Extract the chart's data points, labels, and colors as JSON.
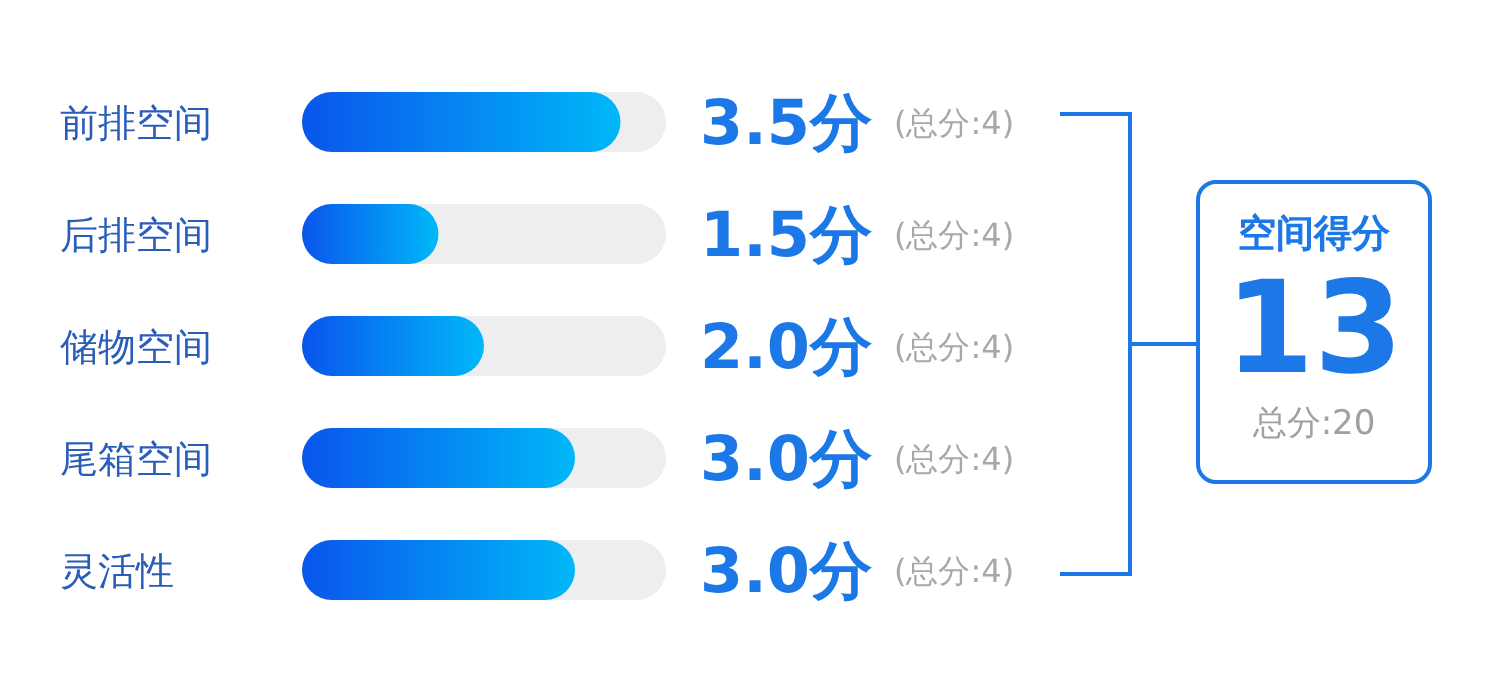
{
  "chart_data": {
    "type": "bar",
    "orientation": "horizontal",
    "categories": [
      "前排空间",
      "后排空间",
      "储物空间",
      "尾箱空间",
      "灵活性"
    ],
    "values": [
      3.5,
      1.5,
      2.0,
      3.0,
      3.0
    ],
    "value_labels": [
      "3.5分",
      "1.5分",
      "2.0分",
      "3.0分",
      "3.0分"
    ],
    "color": "#0a55ec",
    "xlim": [
      0,
      4
    ],
    "tick_labels": "y",
    "annotations": [
      "(总分:4)",
      "(总分:4)",
      "(总分:4)",
      "(总分:4)",
      "(总分:4)",
      "空间得分",
      "13",
      "总分:20"
    ]
  }
}
